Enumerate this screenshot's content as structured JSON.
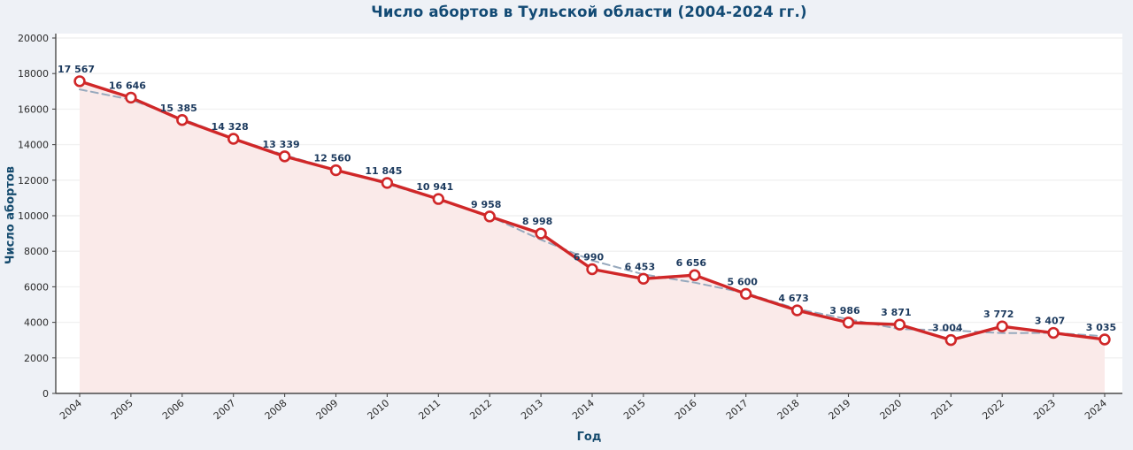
{
  "chart_data": {
    "type": "line",
    "title": "Число абортов в Тульской области (2004-2024 гг.)",
    "xlabel": "Год",
    "ylabel": "Число абортов",
    "x": [
      2004,
      2005,
      2006,
      2007,
      2008,
      2009,
      2010,
      2011,
      2012,
      2013,
      2014,
      2015,
      2016,
      2017,
      2018,
      2019,
      2020,
      2021,
      2022,
      2023,
      2024
    ],
    "series": [
      {
        "name": "abortions",
        "values": [
          17567,
          16646,
          15385,
          14328,
          13339,
          12560,
          11845,
          10941,
          9958,
          8998,
          6990,
          6453,
          6656,
          5600,
          4673,
          3986,
          3871,
          3004,
          3772,
          3407,
          3035
        ],
        "labels": [
          "17 567",
          "16 646",
          "15 385",
          "14 328",
          "13 339",
          "12 560",
          "11 845",
          "10 941",
          "9 958",
          "8 998",
          "6 990",
          "6 453",
          "6 656",
          "5 600",
          "4 673",
          "3 986",
          "3 871",
          "3 004",
          "3 772",
          "3 407",
          "3 035"
        ],
        "color": "#d02728",
        "style": "solid-markers"
      },
      {
        "name": "trend-dashed",
        "values": [
          17107,
          16533,
          15453,
          14351,
          13409,
          12581,
          11782,
          10915,
          9966,
          8649,
          7480,
          6700,
          6236,
          5643,
          4753,
          4177,
          3620,
          3549,
          3394,
          3405,
          3221
        ],
        "color": "#97a9bd",
        "style": "dashed"
      }
    ],
    "ylim": [
      0,
      20000
    ],
    "ytick_step": 2000,
    "grid": true,
    "legend": "none",
    "colors": {
      "figure_background": "#eef1f6",
      "plot_background": "#ffffff",
      "gridline": "#f1f1f1",
      "area_fill": "#faeae9",
      "line": "#d02728",
      "marker_fill": "#ffffff",
      "trend": "#97a9bd",
      "data_label": "#1c3a5e",
      "tick_label": "#2b2b2b",
      "axis_spine": "#4a4a4a",
      "title_color": "#124a74"
    }
  }
}
